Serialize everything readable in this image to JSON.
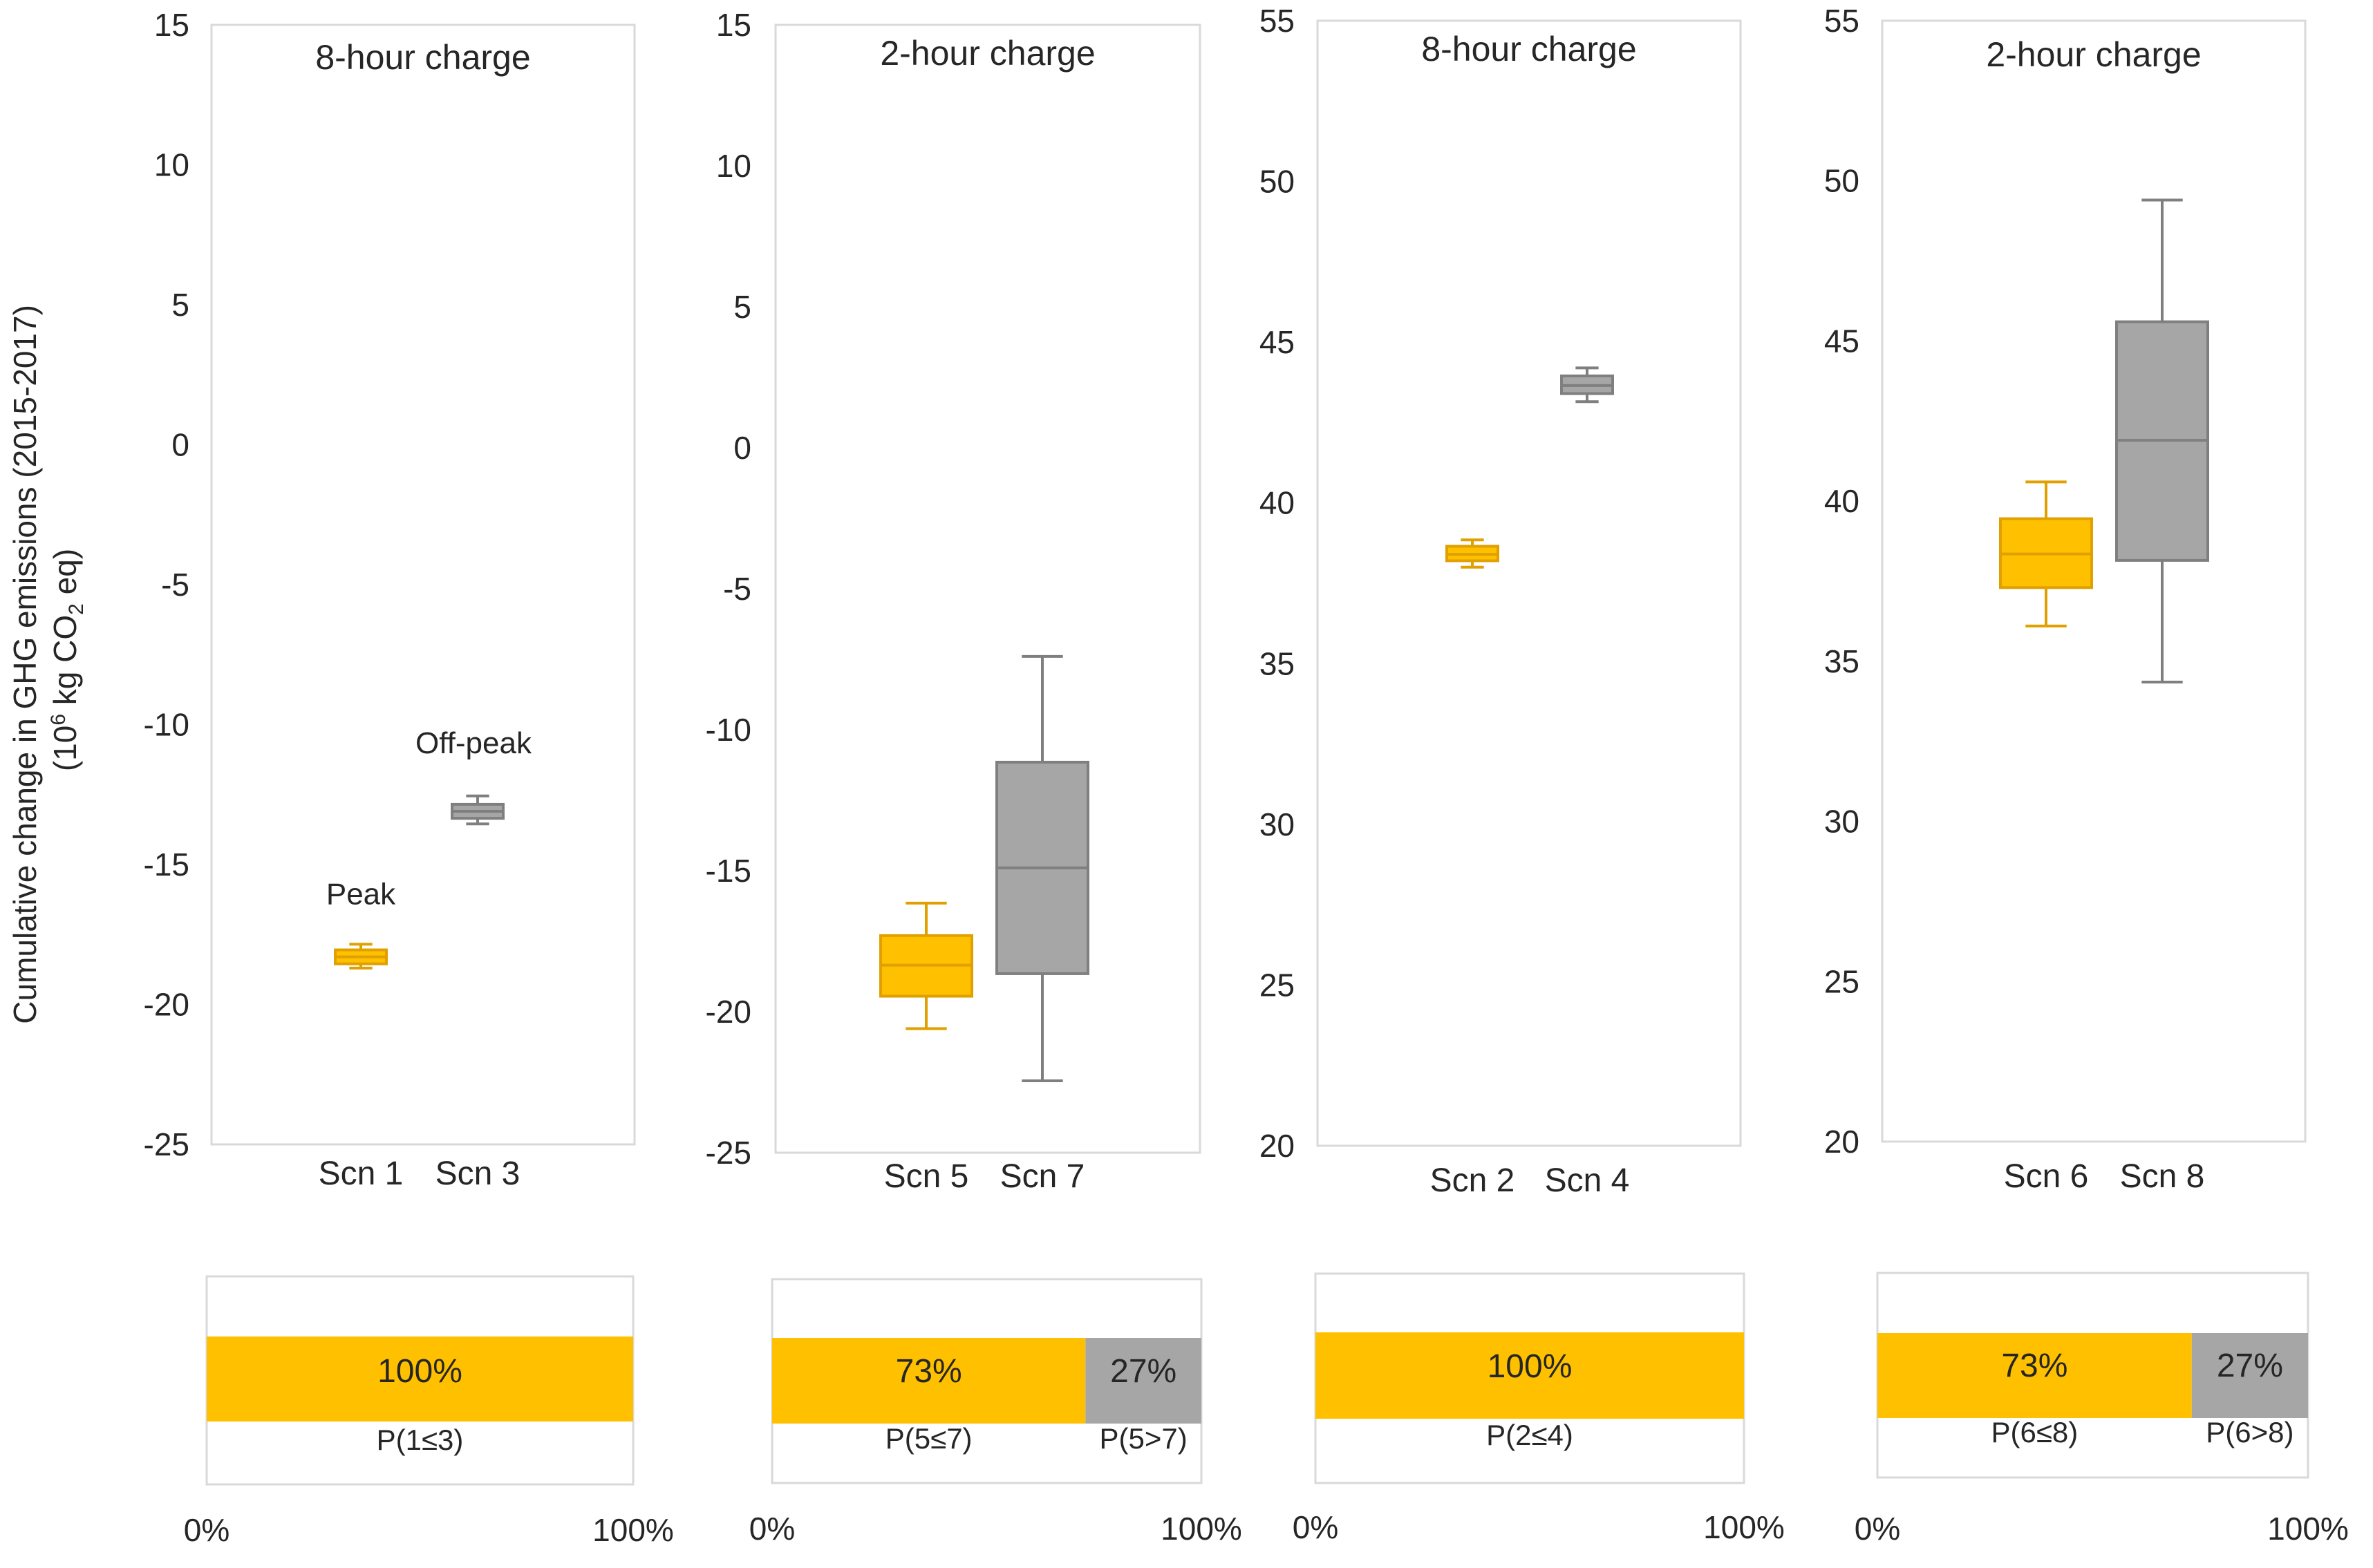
{
  "y_axis_label": {
    "line1": "Cumulative change in GHG emissions (2015-2017)",
    "line2_prefix": "(10",
    "line2_sup": "6",
    "line2_mid": " kg CO",
    "line2_sub": "2",
    "line2_suffix": " eq)"
  },
  "colors": {
    "orange": "#FFC000",
    "orange_line": "#E0A100",
    "gray": "#A6A6A6",
    "gray_line": "#7F7F7F",
    "frame": "#D9D9D9",
    "text": "#262626"
  },
  "chart_data": [
    {
      "type": "box",
      "title": "8-hour charge",
      "ylim": [
        -25,
        15
      ],
      "yticks": [
        -25,
        -20,
        -15,
        -10,
        -5,
        0,
        5,
        10,
        15
      ],
      "categories": [
        "Scn 1",
        "Scn 3"
      ],
      "series": [
        {
          "name": "Scn 1",
          "color": "orange",
          "min": -18.7,
          "q1": -18.55,
          "median": -18.3,
          "q3": -18.05,
          "max": -17.85
        },
        {
          "name": "Scn 3",
          "color": "gray",
          "min": -13.55,
          "q1": -13.35,
          "median": -13.1,
          "q3": -12.85,
          "max": -12.55
        }
      ],
      "annotations": [
        {
          "text": "Peak",
          "target": 0
        },
        {
          "text": "Off-peak",
          "target": 1
        }
      ],
      "prob_bar": {
        "segments": [
          {
            "value": 100,
            "label": "100%",
            "prob": "P(1≤3)",
            "color": "orange"
          }
        ],
        "axis": [
          "0%",
          "100%"
        ]
      }
    },
    {
      "type": "box",
      "title": "2-hour charge",
      "ylim": [
        -25,
        15
      ],
      "yticks": [
        -25,
        -20,
        -15,
        -10,
        -5,
        0,
        5,
        10,
        15
      ],
      "categories": [
        "Scn 5",
        "Scn 7"
      ],
      "series": [
        {
          "name": "Scn 5",
          "color": "orange",
          "min": -20.6,
          "q1": -19.45,
          "median": -18.35,
          "q3": -17.3,
          "max": -16.15
        },
        {
          "name": "Scn 7",
          "color": "gray",
          "min": -22.45,
          "q1": -18.65,
          "median": -14.9,
          "q3": -11.15,
          "max": -7.4
        }
      ],
      "annotations": [],
      "prob_bar": {
        "segments": [
          {
            "value": 73,
            "label": "73%",
            "prob": "P(5≤7)",
            "color": "orange"
          },
          {
            "value": 27,
            "label": "27%",
            "prob": "P(5>7)",
            "color": "gray"
          }
        ],
        "axis": [
          "0%",
          "100%"
        ]
      }
    },
    {
      "type": "box",
      "title": "8-hour charge",
      "ylim": [
        20,
        55
      ],
      "yticks": [
        20,
        25,
        30,
        35,
        40,
        45,
        50,
        55
      ],
      "categories": [
        "Scn 2",
        "Scn 4"
      ],
      "series": [
        {
          "name": "Scn 2",
          "color": "orange",
          "min": 38.0,
          "q1": 38.2,
          "median": 38.4,
          "q3": 38.65,
          "max": 38.85
        },
        {
          "name": "Scn 4",
          "color": "gray",
          "min": 43.15,
          "q1": 43.4,
          "median": 43.65,
          "q3": 43.95,
          "max": 44.2
        }
      ],
      "annotations": [],
      "prob_bar": {
        "segments": [
          {
            "value": 100,
            "label": "100%",
            "prob": "P(2≤4)",
            "color": "orange"
          }
        ],
        "axis": [
          "0%",
          "100%"
        ]
      }
    },
    {
      "type": "box",
      "title": "2-hour charge",
      "ylim": [
        20,
        55
      ],
      "yticks": [
        20,
        25,
        30,
        35,
        40,
        45,
        50,
        55
      ],
      "categories": [
        "Scn 6",
        "Scn 8"
      ],
      "series": [
        {
          "name": "Scn 6",
          "color": "orange",
          "min": 36.1,
          "q1": 37.3,
          "median": 38.35,
          "q3": 39.45,
          "max": 40.6
        },
        {
          "name": "Scn 8",
          "color": "gray",
          "min": 34.35,
          "q1": 38.15,
          "median": 41.9,
          "q3": 45.6,
          "max": 49.4
        }
      ],
      "annotations": [],
      "prob_bar": {
        "segments": [
          {
            "value": 73,
            "label": "73%",
            "prob": "P(6≤8)",
            "color": "orange"
          },
          {
            "value": 27,
            "label": "27%",
            "prob": "P(6>8)",
            "color": "gray"
          }
        ],
        "axis": [
          "0%",
          "100%"
        ]
      }
    }
  ]
}
